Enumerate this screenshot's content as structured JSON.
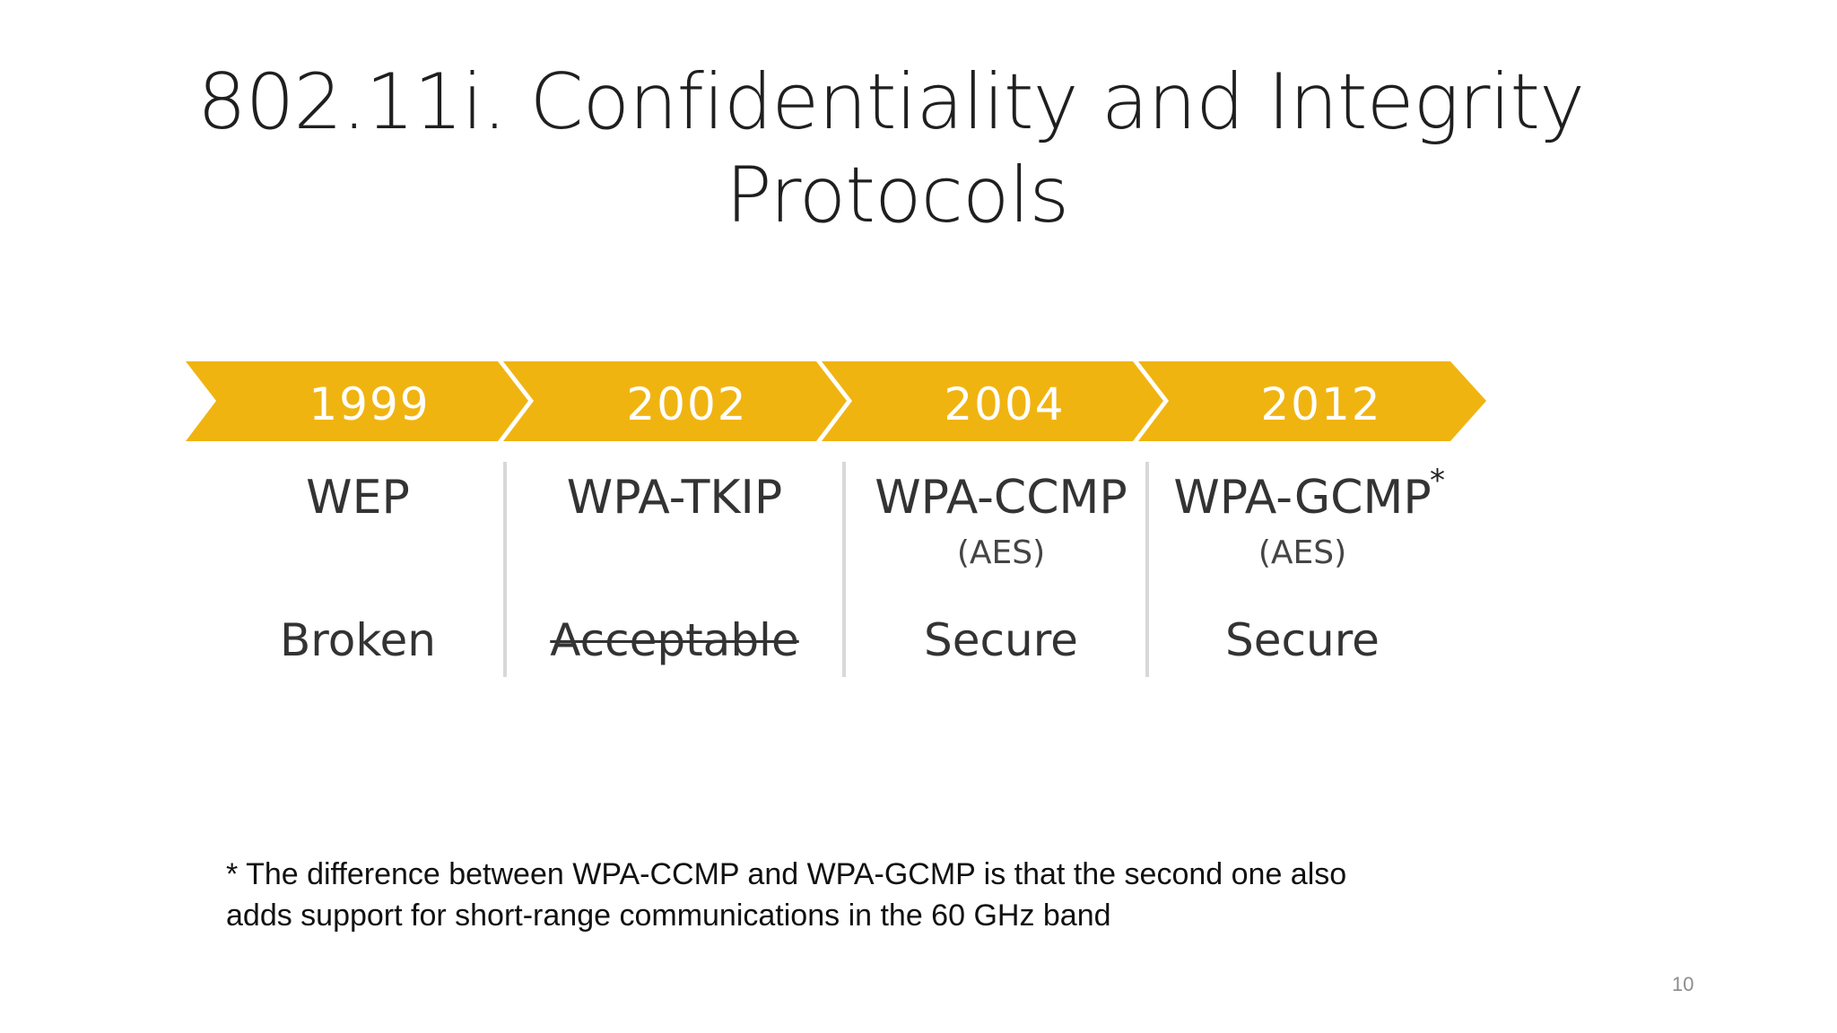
{
  "slide": {
    "title_line1": "802.11i. Confidentiality and Integrity",
    "title_line2": "Protocols",
    "page_number": "10"
  },
  "timeline": {
    "accent_color": "#F0B411",
    "steps": [
      {
        "year": "1999",
        "protocol": "WEP",
        "sub": "",
        "status": "Broken"
      },
      {
        "year": "2002",
        "protocol": "WPA-TKIP",
        "sub": "",
        "status": "Acceptable"
      },
      {
        "year": "2004",
        "protocol": "WPA-CCMP",
        "sub": "(AES)",
        "status": "Secure"
      },
      {
        "year": "2012",
        "protocol": "WPA-GCMP",
        "sub": "(AES)",
        "status": "Secure"
      }
    ],
    "asterisk": "*"
  },
  "footnote": {
    "line1": "* The difference between WPA-CCMP and WPA-GCMP is that the second one also",
    "line2": "adds support for short-range communications in the 60 GHz band"
  }
}
